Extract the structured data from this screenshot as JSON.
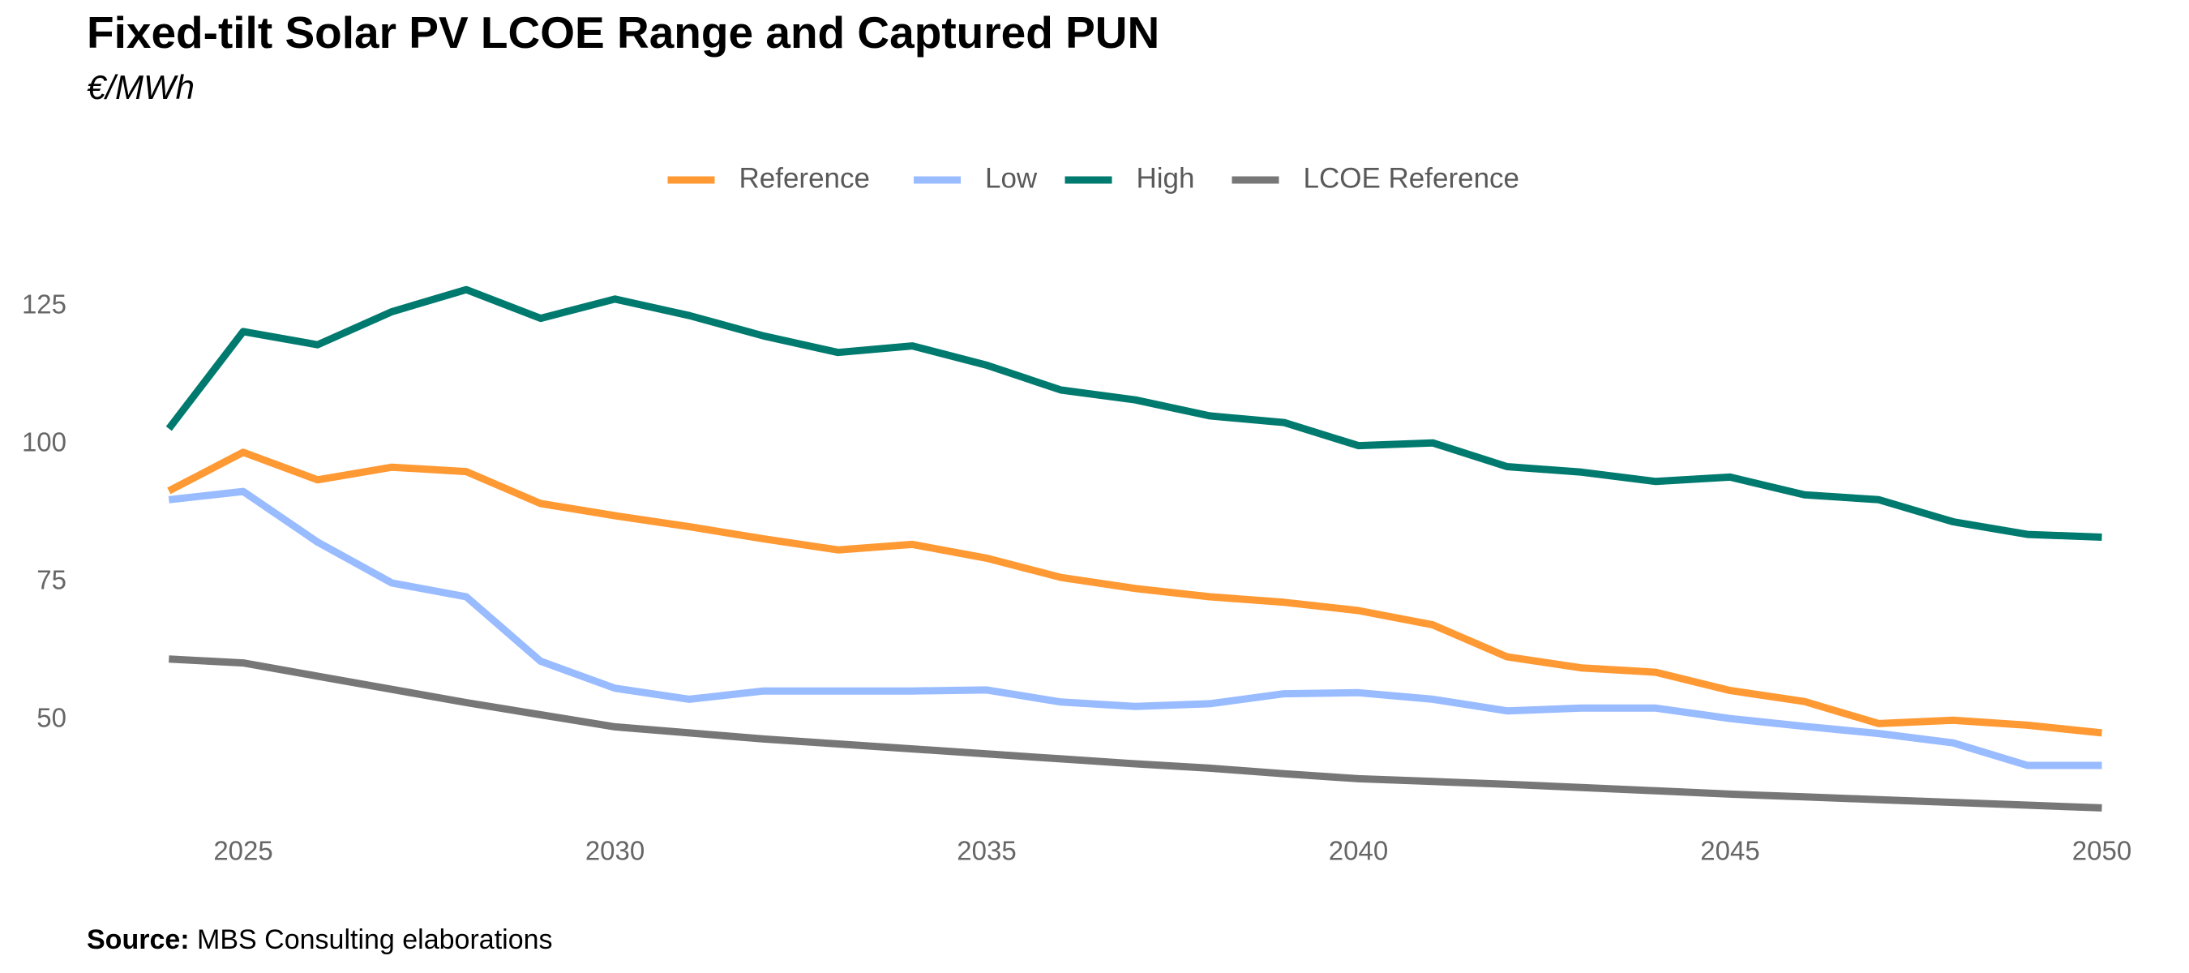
{
  "title": "Fixed-tilt Solar PV LCOE Range and Captured PUN",
  "subtitle": "€/MWh",
  "source": {
    "label": "Source:",
    "text": "MBS Consulting elaborations"
  },
  "chart_data": {
    "type": "line",
    "title": "Fixed-tilt Solar PV LCOE Range and Captured PUN",
    "subtitle": "€/MWh",
    "xlabel": "",
    "ylabel": "",
    "x": [
      2024,
      2025,
      2026,
      2027,
      2028,
      2029,
      2030,
      2031,
      2032,
      2033,
      2034,
      2035,
      2036,
      2037,
      2038,
      2039,
      2040,
      2041,
      2042,
      2043,
      2044,
      2045,
      2046,
      2047,
      2048,
      2049,
      2050
    ],
    "x_ticks": [
      2025,
      2030,
      2035,
      2040,
      2045,
      2050
    ],
    "y_ticks": [
      50,
      75,
      100,
      125
    ],
    "xlim": [
      2023.8,
      2050.3
    ],
    "ylim": [
      32,
      132
    ],
    "grid": false,
    "legend_position": "top",
    "series": [
      {
        "name": "Reference",
        "color": "#FF9933",
        "values": [
          91.5,
          98.5,
          93.5,
          95.8,
          95.0,
          89.2,
          87.0,
          85.0,
          82.8,
          80.8,
          81.8,
          79.3,
          75.8,
          73.8,
          72.3,
          71.3,
          69.8,
          67.2,
          61.4,
          59.4,
          58.6,
          55.3,
          53.3,
          49.3,
          49.9,
          49.0,
          47.6
        ]
      },
      {
        "name": "Low",
        "color": "#99BBFF",
        "values": [
          89.9,
          91.4,
          82.2,
          74.8,
          72.3,
          60.6,
          55.7,
          53.7,
          55.2,
          55.2,
          55.2,
          55.4,
          53.2,
          52.4,
          52.9,
          54.7,
          54.9,
          53.7,
          51.6,
          52.1,
          52.1,
          50.2,
          48.8,
          47.5,
          45.8,
          41.7,
          41.7
        ]
      },
      {
        "name": "High",
        "color": "#007A6E",
        "values": [
          102.8,
          120.4,
          118.0,
          124.0,
          128.0,
          122.8,
          126.3,
          123.3,
          119.6,
          116.6,
          117.8,
          114.3,
          109.8,
          108.0,
          105.1,
          103.9,
          99.7,
          100.2,
          95.9,
          94.9,
          93.2,
          94.0,
          90.8,
          89.9,
          85.9,
          83.6,
          83.1
        ]
      },
      {
        "name": "LCOE Reference",
        "color": "#777777",
        "values": [
          61.0,
          60.3,
          57.9,
          55.5,
          53.1,
          50.9,
          48.7,
          47.6,
          46.5,
          45.6,
          44.7,
          43.8,
          42.9,
          42.0,
          41.2,
          40.2,
          39.3,
          38.8,
          38.3,
          37.7,
          37.1,
          36.5,
          36.0,
          35.5,
          35.0,
          34.5,
          34.0
        ]
      }
    ]
  }
}
